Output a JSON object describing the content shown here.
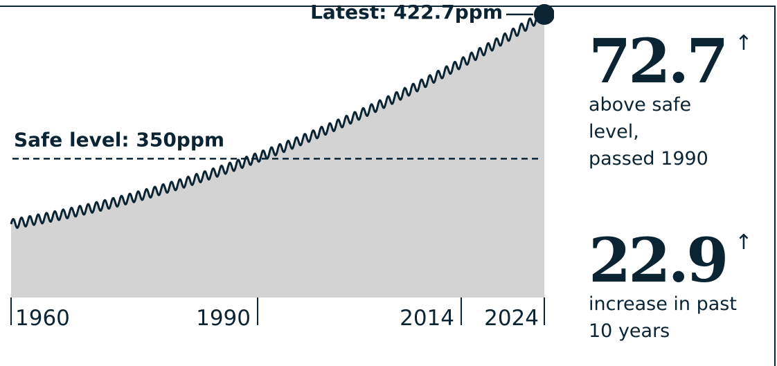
{
  "chart_data": {
    "type": "area",
    "series": [
      {
        "x": [
          1960,
          2024
        ],
        "y_start": 317,
        "y_end": 422.7
      }
    ],
    "x_ticks": [
      "1960",
      "1990",
      "2014",
      "2024"
    ],
    "xlim": [
      1960,
      2024
    ],
    "ylim": [
      280,
      430
    ],
    "reference_line": {
      "label": "Safe level: 350ppm",
      "value": 350
    },
    "latest": {
      "label": "Latest: 422.7ppm",
      "value": 422.7,
      "year": 2024
    },
    "colors": {
      "line": "#0b2433",
      "area": "#d3d3d3"
    }
  },
  "stats": [
    {
      "value": "72.7",
      "arrow": "↑",
      "lines": [
        "above safe",
        "level,",
        "passed 1990"
      ]
    },
    {
      "value": "22.9",
      "arrow": "↑",
      "lines": [
        "increase in past",
        "10 years"
      ]
    }
  ]
}
